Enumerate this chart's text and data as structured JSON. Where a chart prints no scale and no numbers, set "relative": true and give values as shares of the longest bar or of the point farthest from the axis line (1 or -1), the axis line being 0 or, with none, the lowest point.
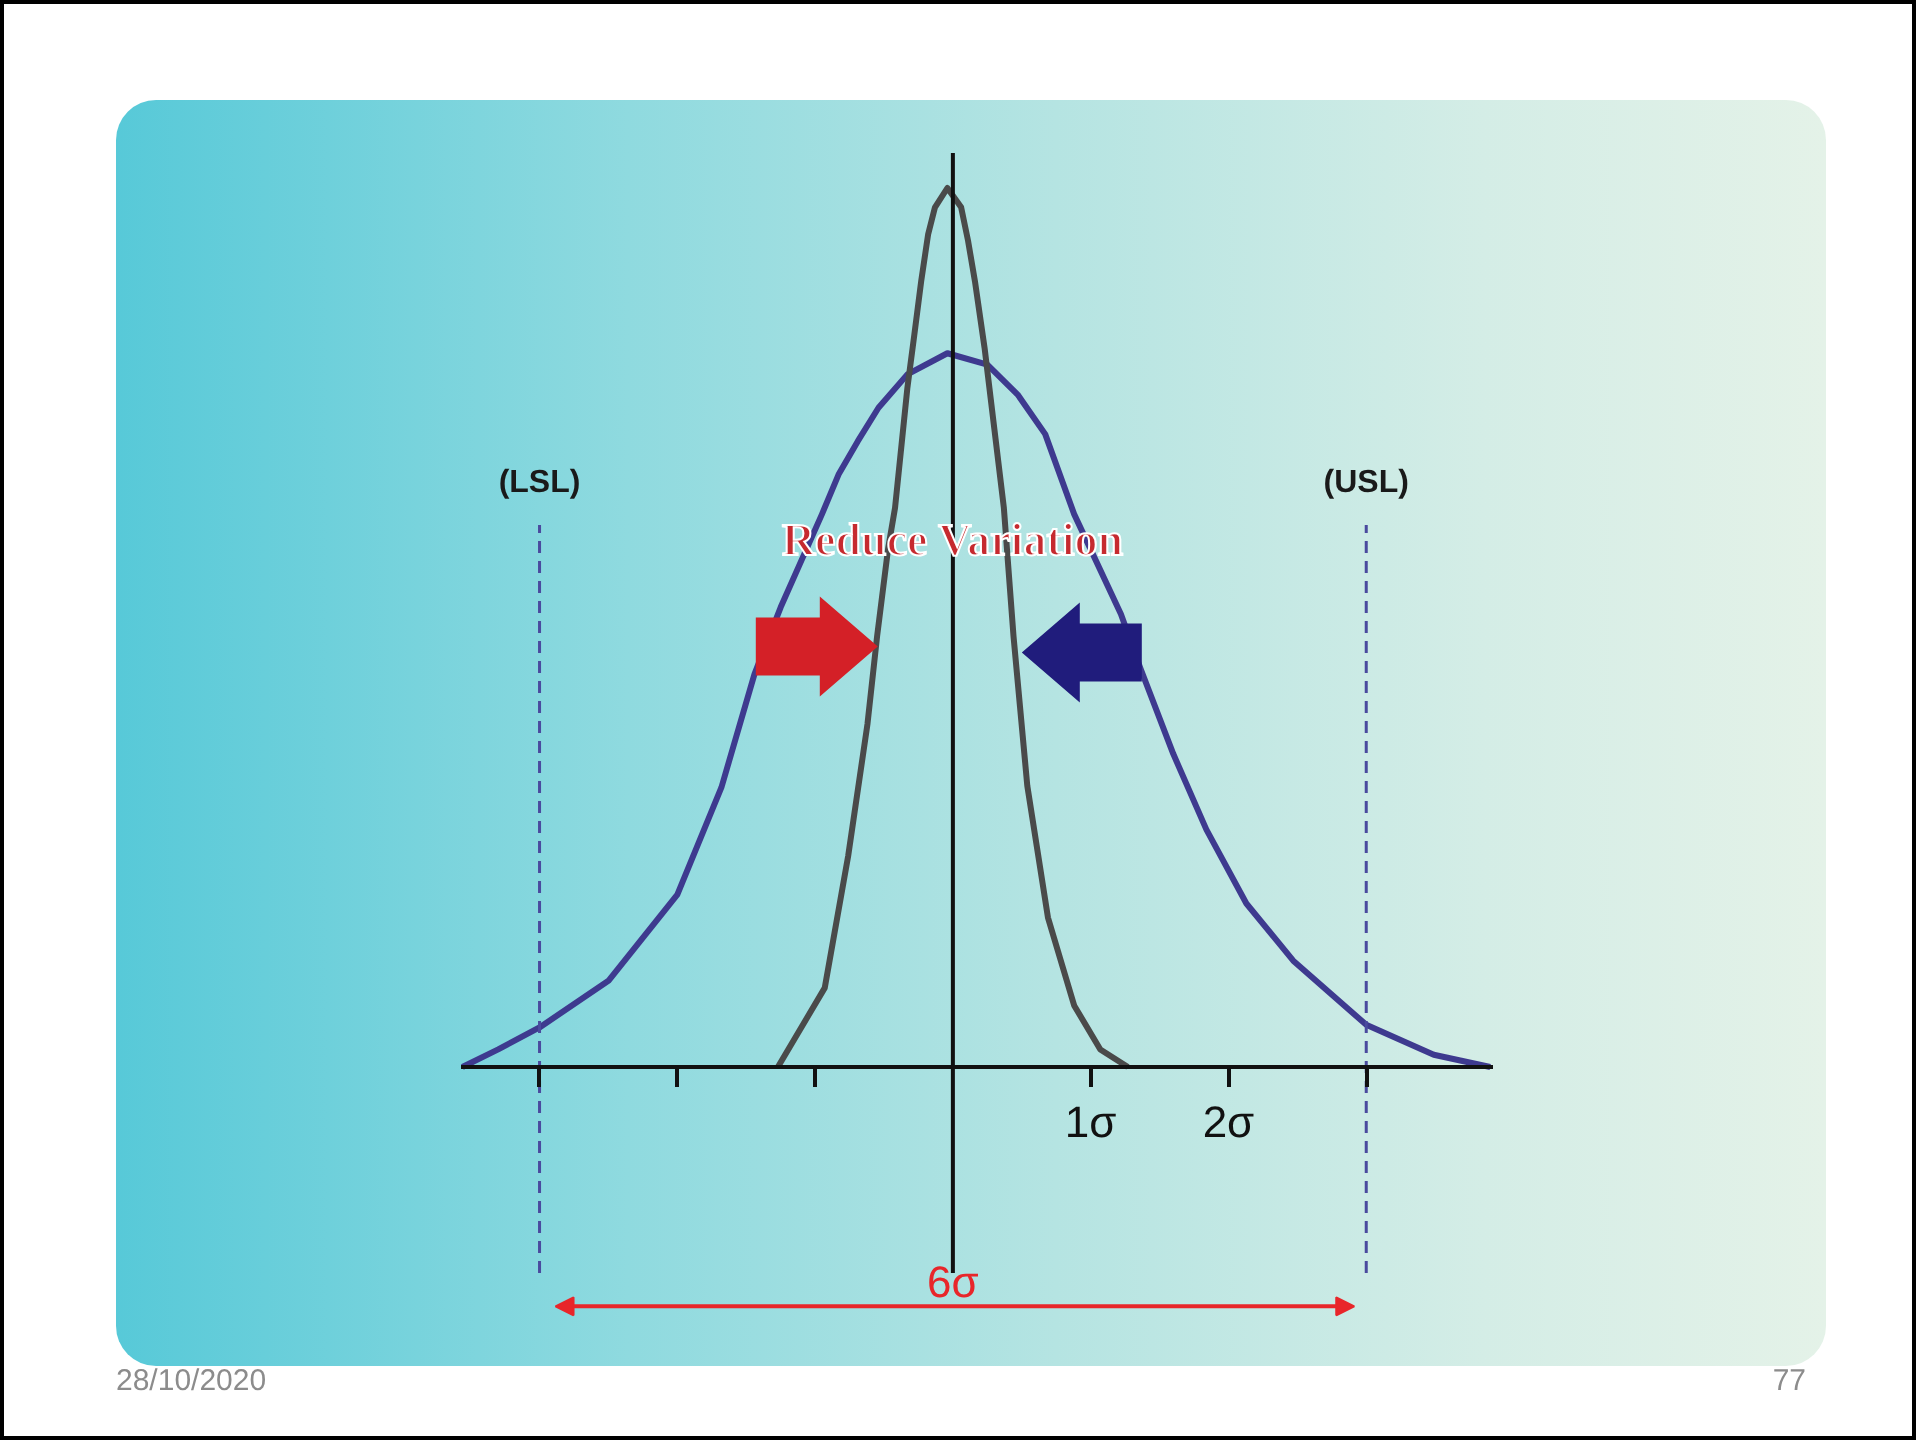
{
  "chart_data": {
    "type": "line",
    "relative": true,
    "series": [
      {
        "color": "#3e3a8f",
        "x": [
          -3.56,
          -3.3,
          -3.0,
          -2.5,
          -2.0,
          -1.68,
          -1.44,
          -1.25,
          -0.95,
          -0.83,
          -0.69,
          -0.54,
          -0.33,
          -0.04,
          0.25,
          0.47,
          0.67,
          0.88,
          1.22,
          1.36,
          1.6,
          1.84,
          2.13,
          2.47,
          3.0,
          3.49,
          3.9
        ],
        "values": [
          0,
          0.02,
          0.045,
          0.098,
          0.196,
          0.318,
          0.447,
          0.523,
          0.629,
          0.674,
          0.712,
          0.75,
          0.788,
          0.812,
          0.799,
          0.765,
          0.72,
          0.629,
          0.515,
          0.454,
          0.356,
          0.27,
          0.186,
          0.121,
          0.048,
          0.014,
          0
        ]
      },
      {
        "color": "#4a4a4a",
        "x": [
          -1.27,
          -0.93,
          -0.76,
          -0.62,
          -0.55,
          -0.47,
          -0.42,
          -0.37,
          -0.33,
          -0.28,
          -0.23,
          -0.18,
          -0.13,
          -0.04,
          0.06,
          0.11,
          0.16,
          0.23,
          0.3,
          0.37,
          0.44,
          0.54,
          0.69,
          0.88,
          1.07,
          1.27
        ],
        "values": [
          0,
          0.09,
          0.24,
          0.39,
          0.49,
          0.59,
          0.636,
          0.712,
          0.773,
          0.833,
          0.894,
          0.947,
          0.978,
          1,
          0.978,
          0.94,
          0.894,
          0.818,
          0.727,
          0.636,
          0.49,
          0.32,
          0.17,
          0.07,
          0.02,
          0
        ]
      }
    ],
    "xlim": [
      -3.57,
      3.92
    ],
    "xticks": [
      {
        "value": -3,
        "label": null
      },
      {
        "value": -2,
        "label": null
      },
      {
        "value": -1,
        "label": null
      },
      {
        "value": 1,
        "label": "1σ"
      },
      {
        "value": 2,
        "label": "2σ"
      },
      {
        "value": 3,
        "label": null
      }
    ],
    "tick_labels": "x",
    "ref_lines": [
      {
        "axis": "x",
        "value": 0,
        "color": "#111111"
      },
      {
        "axis": "x",
        "value": -3,
        "label": "(LSL)",
        "color": "#4a4a9e",
        "line_style": "dashed"
      },
      {
        "axis": "x",
        "value": 3,
        "label": "(USL)",
        "color": "#4a4a9e",
        "line_style": "dashed"
      }
    ],
    "annotations": [
      {
        "text": "Reduce Variation",
        "x": 0,
        "y": 0.6
      },
      {
        "text": "6σ",
        "x": 0,
        "y": -0.245
      },
      "28/10/2020",
      "77"
    ]
  }
}
